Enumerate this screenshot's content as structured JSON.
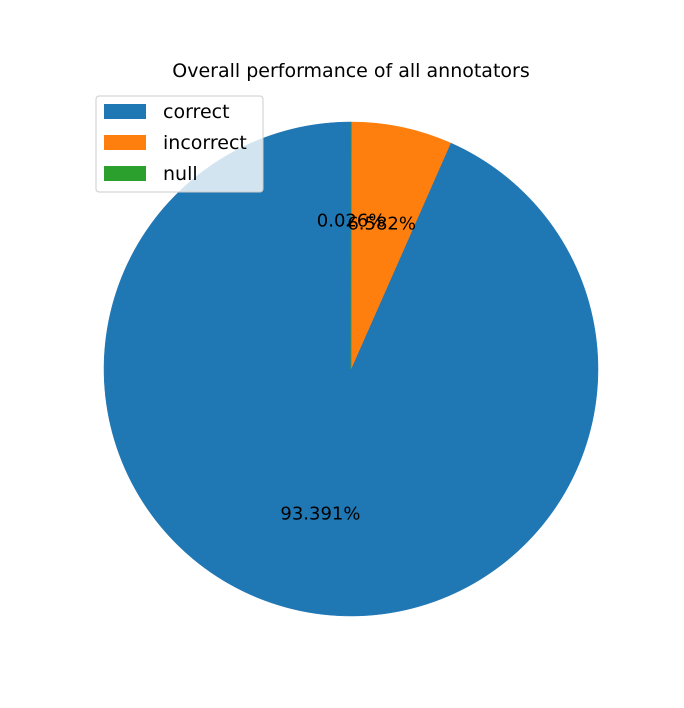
{
  "chart_data": {
    "type": "pie",
    "title": "Overall performance of all annotators",
    "slices": [
      {
        "label": "correct",
        "value": 93.391,
        "display": "93.391%",
        "color": "#1f77b4"
      },
      {
        "label": "incorrect",
        "value": 6.582,
        "display": "6.582%",
        "color": "#ff7f0e"
      },
      {
        "label": "null",
        "value": 0.026,
        "display": "0.026%",
        "color": "#2ca02c"
      }
    ],
    "start_angle_deg": 90,
    "direction": "counterclockwise",
    "legend_position": "upper-left",
    "xlabel": "",
    "ylabel": ""
  }
}
